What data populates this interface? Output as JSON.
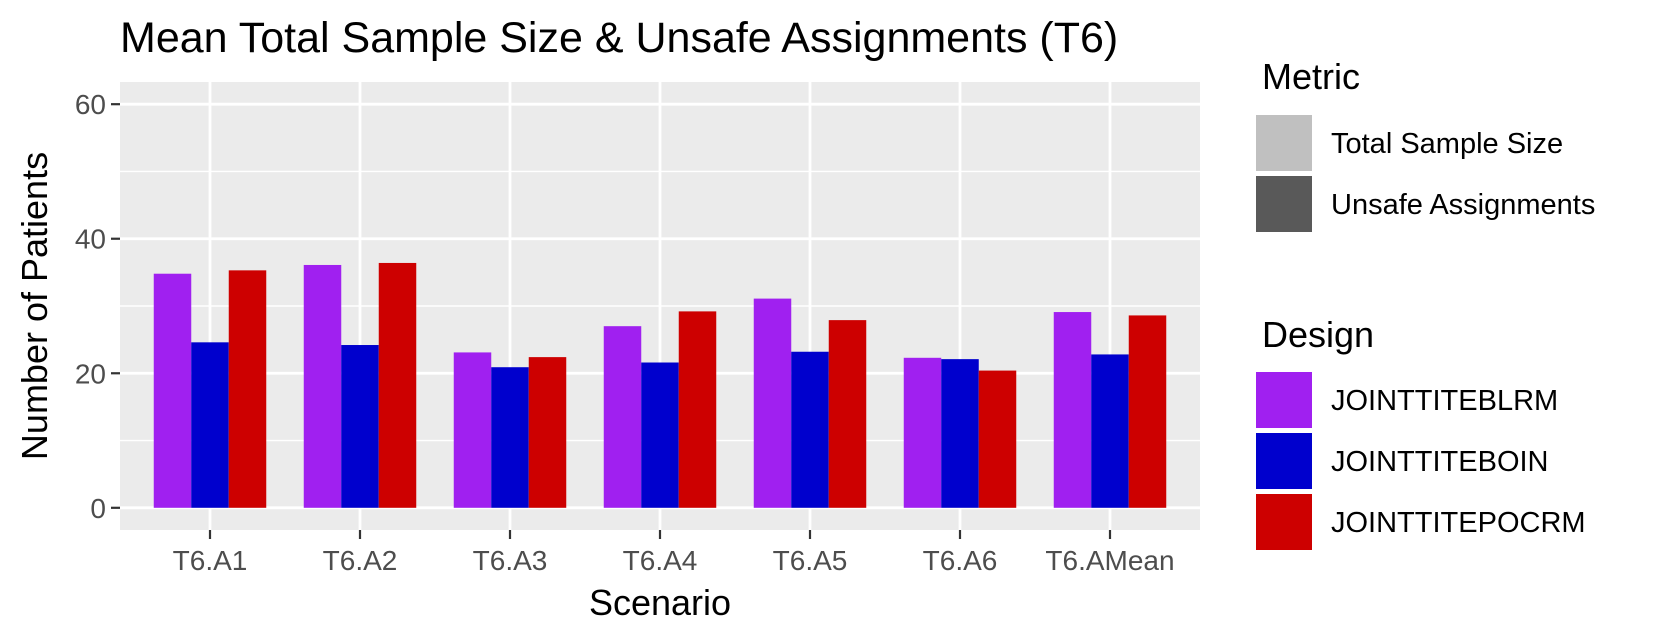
{
  "chart_data": {
    "type": "bar",
    "title": "Mean Total Sample Size & Unsafe Assignments (T6)",
    "xlabel": "Scenario",
    "ylabel": "Number of Patients",
    "ylim": [
      0,
      60
    ],
    "yticks": [
      0,
      20,
      40,
      60
    ],
    "grid": true,
    "categories": [
      "T6.A1",
      "T6.A2",
      "T6.A3",
      "T6.A4",
      "T6.A5",
      "T6.A6",
      "T6.AMean"
    ],
    "series": [
      {
        "name": "JOINTTITEBLRM",
        "color": "#a020f0",
        "values": [
          34.8,
          36.1,
          23.1,
          27.0,
          31.1,
          22.3,
          29.1
        ]
      },
      {
        "name": "JOINTTITEBOIN",
        "color": "#0000cd",
        "values": [
          24.6,
          24.2,
          20.9,
          21.6,
          23.2,
          22.1,
          22.8
        ]
      },
      {
        "name": "JOINTTITEPOCRM",
        "color": "#cd0000",
        "values": [
          35.3,
          36.4,
          22.4,
          29.2,
          27.9,
          20.4,
          28.6
        ]
      }
    ],
    "legend": {
      "position": "right",
      "metric": {
        "title": "Metric",
        "items": [
          {
            "label": "Total Sample Size",
            "color": "#c0c0c0"
          },
          {
            "label": "Unsafe Assignments",
            "color": "#595959"
          }
        ]
      },
      "design": {
        "title": "Design"
      }
    },
    "panel_background": "#ebebeb",
    "grid_color": "#ffffff"
  }
}
